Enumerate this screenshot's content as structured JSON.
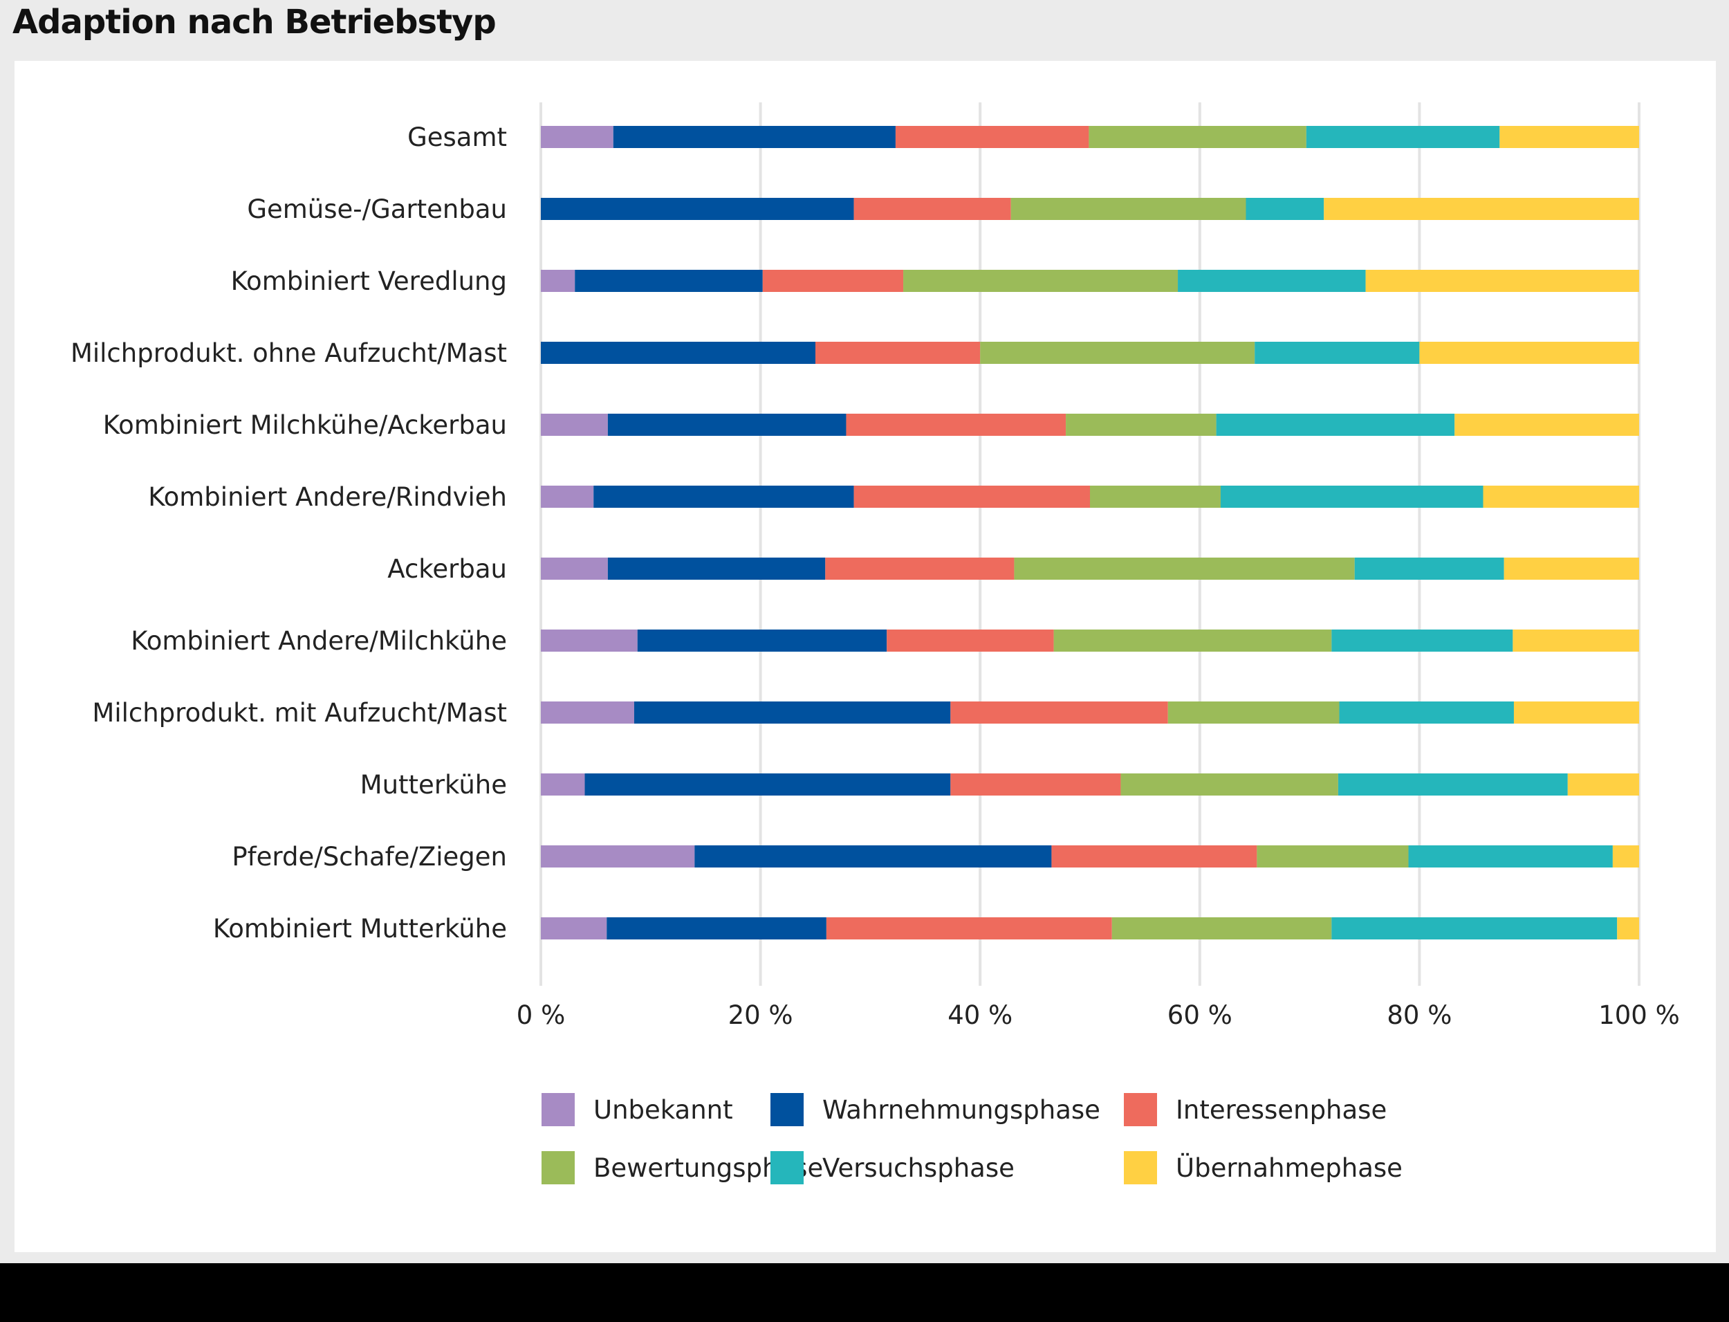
{
  "title": "Adaption nach Betriebstyp",
  "chart_data": {
    "type": "bar",
    "orientation": "horizontal",
    "stacked": true,
    "title": "Adaption nach Betriebstyp",
    "categories": [
      "Gesamt",
      "Gemüse-/Gartenbau",
      "Kombiniert Veredlung",
      "Milchprodukt. ohne Aufzucht/Mast",
      "Kombiniert Milchkühe/Ackerbau",
      "Kombiniert Andere/Rindvieh",
      "Ackerbau",
      "Kombiniert Andere/Milchkühe",
      "Milchprodukt. mit Aufzucht/Mast",
      "Mutterkühe",
      "Pferde/Schafe/Ziegen",
      "Kombiniert Mutterkühe"
    ],
    "series": [
      {
        "name": "Unbekannt",
        "color": "#a78bc4",
        "values": [
          6.6,
          0,
          3.1,
          0,
          6.1,
          4.8,
          6.1,
          8.8,
          8.5,
          4.0,
          14.0,
          6.0
        ]
      },
      {
        "name": "Wahrnehmungsphase",
        "color": "#00519e",
        "values": [
          25.7,
          28.5,
          17.1,
          25.0,
          21.7,
          23.7,
          19.8,
          22.7,
          28.8,
          33.3,
          32.5,
          20.0
        ]
      },
      {
        "name": "Interessenphase",
        "color": "#ee6b5d",
        "values": [
          17.6,
          14.3,
          12.8,
          15.0,
          20.0,
          21.5,
          17.2,
          15.2,
          19.8,
          15.5,
          18.7,
          26.0
        ]
      },
      {
        "name": "Bewertungsphase",
        "color": "#9bbb59",
        "values": [
          19.8,
          21.4,
          25.0,
          25.0,
          13.7,
          11.9,
          31.0,
          25.3,
          15.6,
          19.8,
          13.8,
          20.0
        ]
      },
      {
        "name": "Versuchsphase",
        "color": "#25b6bb",
        "values": [
          17.6,
          7.1,
          17.1,
          15.0,
          21.7,
          23.9,
          13.6,
          16.5,
          15.9,
          20.9,
          18.6,
          26.0
        ]
      },
      {
        "name": "Übernahmephase",
        "color": "#ffd043",
        "values": [
          12.7,
          28.7,
          24.9,
          20.0,
          16.8,
          14.2,
          12.3,
          11.5,
          11.4,
          6.5,
          2.4,
          2.0
        ]
      }
    ],
    "xlim": [
      0,
      100
    ],
    "xticks": [
      0,
      20,
      40,
      60,
      80,
      100
    ],
    "xtick_labels": [
      "0 %",
      "20 %",
      "40 %",
      "60 %",
      "80 %",
      "100 %"
    ],
    "xlabel": "",
    "ylabel": "",
    "grid": "vertical",
    "legend_position": "bottom"
  }
}
